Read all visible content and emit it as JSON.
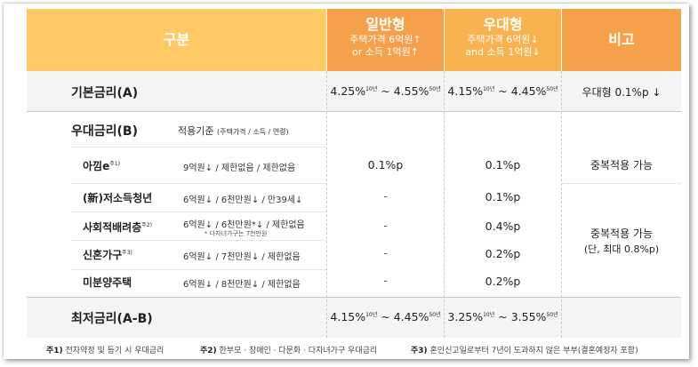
{
  "header": {
    "category": "구분",
    "general": {
      "title": "일반형",
      "sub1": "주택가격 6억원↑",
      "sub2": "or 소득 1억원↑"
    },
    "preferential": {
      "title": "우대형",
      "sub1": "주택가격 6억원↓",
      "sub2": "and 소득 1억원↓"
    },
    "remarks": "비고"
  },
  "base_rate": {
    "label": "기본금리(A)",
    "general": {
      "low": "4.25%",
      "low_term": "10년",
      "tilde": "~",
      "high": "4.55%",
      "high_term": "50년"
    },
    "preferential": {
      "low": "4.15%",
      "low_term": "10년",
      "tilde": "~",
      "high": "4.45%",
      "high_term": "50년"
    },
    "remarks": "우대형 0.1%p ↓"
  },
  "preferential_rate": {
    "label": "우대금리(B)",
    "criteria_label": "적용기준",
    "criteria_detail": "(주택가격 / 소득 / 연령)",
    "items": [
      {
        "name": "아낌e",
        "mark": "주1)",
        "criteria": "9억원↓ / 제한없음 / 제한없음",
        "general": "0.1%p",
        "preferential": "0.1%p"
      },
      {
        "name": "(新)저소득청년",
        "mark": "",
        "criteria": "6억원↓ / 6천만원↓ / 만39세↓",
        "general": "-",
        "preferential": "0.1%p"
      },
      {
        "name": "사회적배려층",
        "mark": "주2)",
        "criteria": "6억원↓ / 6천만원*↓ / 제한없음",
        "criteria_note": "* 다자녀가구는 7천만원",
        "general": "-",
        "preferential": "0.4%p"
      },
      {
        "name": "신혼가구",
        "mark": "주3)",
        "criteria": "6억원↓ / 7천만원↓ / 제한없음",
        "general": "-",
        "preferential": "0.2%p"
      },
      {
        "name": "미분양주택",
        "mark": "",
        "criteria": "6억원↓ / 8천만원↓ / 제한없음",
        "general": "-",
        "preferential": "0.2%p"
      }
    ],
    "remark_1": "중복적용 가능",
    "remark_2_line1": "중복적용 가능",
    "remark_2_line2": "(단, 최대 0.8%p)"
  },
  "minimum_rate": {
    "label": "최저금리(A-B)",
    "general": {
      "low": "4.15%",
      "low_term": "10년",
      "tilde": "~",
      "high": "4.45%",
      "high_term": "50년"
    },
    "preferential": {
      "low": "3.25%",
      "low_term": "10년",
      "tilde": "~",
      "high": "3.55%",
      "high_term": "50년"
    }
  },
  "footnotes": [
    {
      "mark": "주1)",
      "text": "전자약정 및 등기 시 우대금리"
    },
    {
      "mark": "주2)",
      "text": "한부모 · 장애인 · 다문화 · 다자녀가구 우대금리"
    },
    {
      "mark": "주3)",
      "text": "혼인신고일로부터 7년이 도과하지 않은 부부(결혼예정자 포함)"
    }
  ],
  "colors": {
    "header_light": "#ffc966",
    "header_dark": "#f5a04a",
    "row_gray": "#f4f4f5"
  }
}
